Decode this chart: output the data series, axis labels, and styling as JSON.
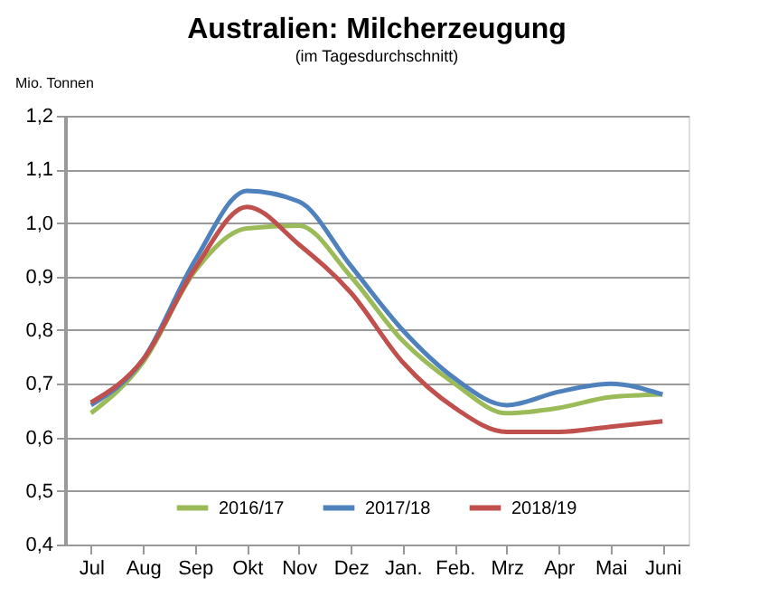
{
  "chart_data": {
    "type": "line",
    "title": "Australien: Milcherzeugung",
    "subtitle": "(im Tagesdurchschnitt)",
    "ylabel": "Mio. Tonnen",
    "categories": [
      "Jul",
      "Aug",
      "Sep",
      "Okt",
      "Nov",
      "Dez",
      "Jan.",
      "Feb.",
      "Mrz",
      "Apr",
      "Mai",
      "Juni"
    ],
    "series": [
      {
        "name": "2016/17",
        "color": "#9bbb59",
        "values": [
          0.645,
          0.74,
          0.91,
          0.99,
          0.995,
          0.9,
          0.78,
          0.7,
          0.645,
          0.655,
          0.675,
          0.68
        ]
      },
      {
        "name": "2017/18",
        "color": "#4f81bd",
        "values": [
          0.66,
          0.745,
          0.93,
          1.06,
          1.04,
          0.92,
          0.8,
          0.71,
          0.66,
          0.685,
          0.7,
          0.68
        ]
      },
      {
        "name": "2018/19",
        "color": "#c0504d",
        "values": [
          0.665,
          0.745,
          0.915,
          1.03,
          0.96,
          0.87,
          0.74,
          0.655,
          0.61,
          0.61,
          0.62,
          0.63
        ]
      }
    ],
    "ylim": [
      0.4,
      1.2
    ],
    "yticks": [
      {
        "value": 0.4,
        "label": "0,4"
      },
      {
        "value": 0.5,
        "label": "0,5"
      },
      {
        "value": 0.6,
        "label": "0,6"
      },
      {
        "value": 0.7,
        "label": "0,7"
      },
      {
        "value": 0.8,
        "label": "0,8"
      },
      {
        "value": 0.9,
        "label": "0,9"
      },
      {
        "value": 1.0,
        "label": "1,0"
      },
      {
        "value": 1.1,
        "label": "1,1"
      },
      {
        "value": 1.2,
        "label": "1,2"
      }
    ],
    "grid": "y",
    "legend": "bottom",
    "marker": "none",
    "line_style": "solid"
  }
}
